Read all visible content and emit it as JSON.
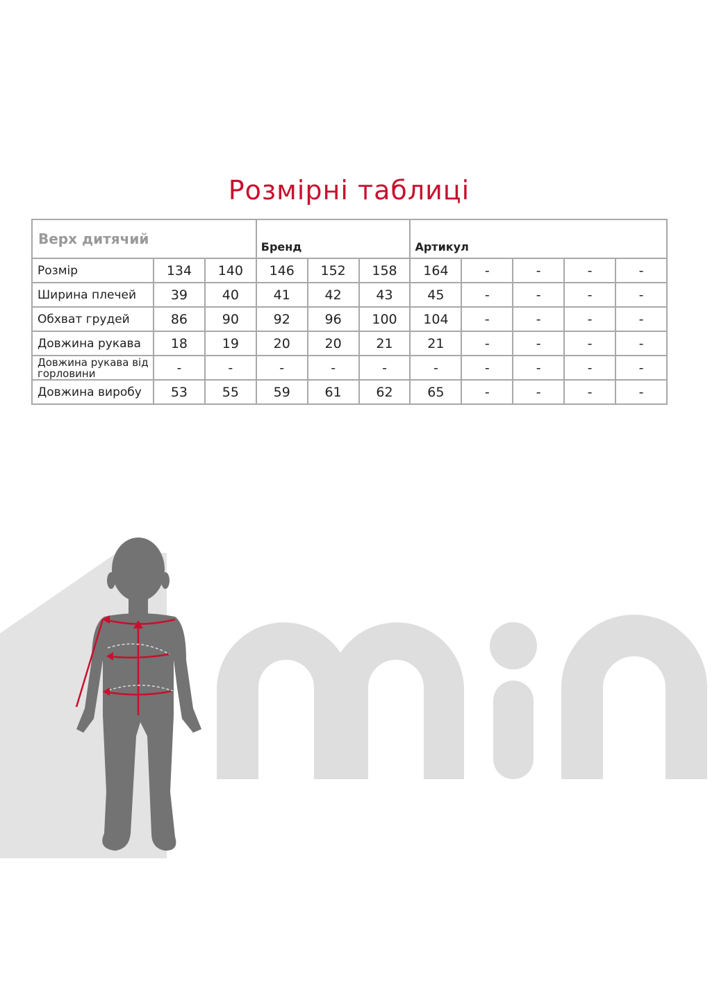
{
  "title": "Розмірні таблиці",
  "table": {
    "category": "Верх дитячий",
    "brand_label": "Бренд",
    "article_label": "Артикул",
    "rows": [
      {
        "label": "Розмір",
        "values": [
          "134",
          "140",
          "146",
          "152",
          "158",
          "164",
          "-",
          "-",
          "-",
          "-"
        ]
      },
      {
        "label": "Ширина плечей",
        "values": [
          "39",
          "40",
          "41",
          "42",
          "43",
          "45",
          "-",
          "-",
          "-",
          "-"
        ]
      },
      {
        "label": "Обхват грудей",
        "values": [
          "86",
          "90",
          "92",
          "96",
          "100",
          "104",
          "-",
          "-",
          "-",
          "-"
        ]
      },
      {
        "label": "Довжина рукава",
        "values": [
          "18",
          "19",
          "20",
          "20",
          "21",
          "21",
          "-",
          "-",
          "-",
          "-"
        ]
      },
      {
        "label": "Довжина рукава від горловини",
        "values": [
          "-",
          "-",
          "-",
          "-",
          "-",
          "-",
          "-",
          "-",
          "-",
          "-"
        ]
      },
      {
        "label": "Довжина виробу",
        "values": [
          "53",
          "55",
          "59",
          "61",
          "62",
          "65",
          "-",
          "-",
          "-",
          "-"
        ]
      }
    ]
  },
  "logo_text": "min",
  "colors": {
    "accent": "#c8102e",
    "border": "#a8a8a8",
    "silhouette": "#737373",
    "logo": "#dedede"
  }
}
